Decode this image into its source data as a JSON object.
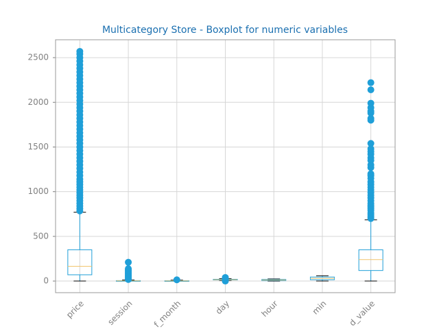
{
  "chart_data": {
    "type": "boxplot",
    "title": "Multicategory Store - Boxplot for numeric variables",
    "categories": [
      "price",
      "session",
      "f_month",
      "day",
      "hour",
      "min",
      "d_value"
    ],
    "boxes": [
      {
        "whislo": 0,
        "q1": 70,
        "med": 165,
        "q3": 350,
        "whishi": 770,
        "fliers": [
          785,
          810,
          840,
          870,
          900,
          930,
          960,
          990,
          1020,
          1050,
          1080,
          1110,
          1140,
          1180,
          1220,
          1260,
          1300,
          1340,
          1380,
          1420,
          1460,
          1500,
          1540,
          1580,
          1620,
          1660,
          1700,
          1740,
          1780,
          1820,
          1860,
          1900,
          1940,
          1980,
          2020,
          2060,
          2100,
          2140,
          2180,
          2220,
          2260,
          2300,
          2340,
          2380,
          2420,
          2460,
          2500,
          2540,
          2570
        ]
      },
      {
        "whislo": 0,
        "q1": 0,
        "med": 2,
        "q3": 5,
        "whishi": 12,
        "fliers": [
          18,
          28,
          38,
          48,
          58,
          68,
          78,
          88,
          98,
          108,
          118,
          128,
          138,
          210
        ]
      },
      {
        "whislo": 0,
        "q1": 0,
        "med": 1,
        "q3": 4,
        "whishi": 10,
        "fliers": [
          14
        ]
      },
      {
        "whislo": 8,
        "q1": 14,
        "med": 16,
        "q3": 20,
        "whishi": 26,
        "fliers": [
          0,
          5,
          30,
          35,
          40
        ]
      },
      {
        "whislo": 0,
        "q1": 6,
        "med": 12,
        "q3": 18,
        "whishi": 23,
        "fliers": []
      },
      {
        "whislo": 0,
        "q1": 15,
        "med": 30,
        "q3": 45,
        "whishi": 59,
        "fliers": []
      },
      {
        "whislo": 0,
        "q1": 118,
        "med": 240,
        "q3": 350,
        "whishi": 685,
        "fliers": [
          700,
          720,
          740,
          760,
          790,
          810,
          830,
          850,
          870,
          900,
          930,
          960,
          990,
          1020,
          1050,
          1080,
          1110,
          1150,
          1180,
          1200,
          1270,
          1300,
          1350,
          1380,
          1420,
          1450,
          1480,
          1540,
          1800,
          1820,
          1880,
          1900,
          1940,
          1990,
          2140,
          2220
        ]
      }
    ],
    "color": "#1f9fd8",
    "median_color": "#f2c46d",
    "ylim": [
      -130,
      2700
    ],
    "yticks": [
      0,
      500,
      1000,
      1500,
      2000,
      2500
    ],
    "grid": true
  }
}
